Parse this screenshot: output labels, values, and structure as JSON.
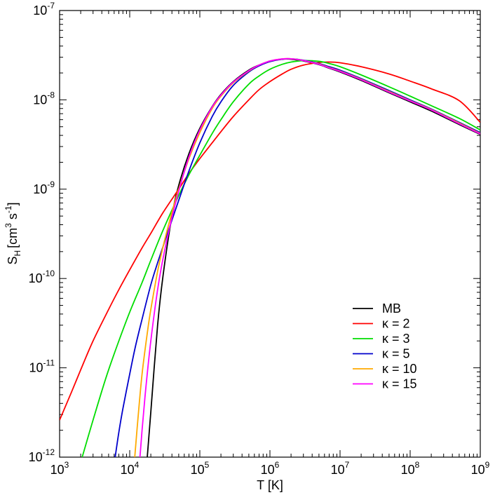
{
  "chart_data": {
    "type": "line",
    "xscale": "log",
    "yscale": "log",
    "xlim": [
      1000,
      1000000000
    ],
    "ylim": [
      1e-12,
      1e-07
    ],
    "grid": false,
    "legend_position": "lower-right",
    "xlabel": {
      "main": "T [K]"
    },
    "ylabel": {
      "base": "S",
      "sub": "H",
      "unit_open": "[cm",
      "sup1": "3",
      "mid": " s",
      "sup2": "-1",
      "unit_close": "]"
    },
    "x_ticks": [
      {
        "base": "10",
        "exp": "3",
        "value": 1000
      },
      {
        "base": "10",
        "exp": "4",
        "value": 10000
      },
      {
        "base": "10",
        "exp": "5",
        "value": 100000
      },
      {
        "base": "10",
        "exp": "6",
        "value": 1000000
      },
      {
        "base": "10",
        "exp": "7",
        "value": 10000000
      },
      {
        "base": "10",
        "exp": "8",
        "value": 100000000
      },
      {
        "base": "10",
        "exp": "9",
        "value": 1000000000
      }
    ],
    "y_ticks": [
      {
        "base": "10",
        "exp": "-12",
        "value": 1e-12
      },
      {
        "base": "10",
        "exp": "-11",
        "value": 1e-11
      },
      {
        "base": "10",
        "exp": "-10",
        "value": 1e-10
      },
      {
        "base": "10",
        "exp": "-9",
        "value": 1e-09
      },
      {
        "base": "10",
        "exp": "-8",
        "value": 1e-08
      },
      {
        "base": "10",
        "exp": "-7",
        "value": 1e-07
      }
    ],
    "series": [
      {
        "name": "MB",
        "color": "#000000",
        "x": [
          17800,
          20000,
          25000,
          30000,
          40000,
          50000,
          70000,
          100000,
          150000,
          200000,
          300000,
          500000,
          700000,
          1000000,
          1500000,
          2000000,
          3000000,
          5000000,
          7000000,
          10000000,
          20000000,
          50000000,
          100000000,
          200000000,
          500000000,
          1000000000
        ],
        "y": [
          1e-12,
          3.2e-12,
          3e-11,
          1.1e-10,
          5e-10,
          1.1e-09,
          2.5e-09,
          4.8e-09,
          8.4e-09,
          1.15e-08,
          1.6e-08,
          2.15e-08,
          2.45e-08,
          2.7e-08,
          2.85e-08,
          2.85e-08,
          2.72e-08,
          2.48e-08,
          2.26e-08,
          2.05e-08,
          1.65e-08,
          1.2e-08,
          9.5e-09,
          7.5e-09,
          5.3e-09,
          4.1e-09
        ]
      },
      {
        "name": "κ = 2",
        "color": "#ff0000",
        "x": [
          1000,
          1500,
          2000,
          3000,
          5000,
          7000,
          10000,
          15000,
          20000,
          30000,
          50000,
          70000,
          100000,
          150000,
          200000,
          300000,
          500000,
          700000,
          1000000,
          1500000,
          2000000,
          3000000,
          5000000,
          7000000,
          10000000,
          20000000,
          50000000,
          100000000,
          200000000,
          500000000,
          1000000000
        ],
        "y": [
          2.6e-12,
          5.5e-12,
          9.5e-12,
          2e-11,
          4.5e-11,
          7.5e-11,
          1.25e-10,
          2.2e-10,
          3.2e-10,
          5.5e-10,
          1e-09,
          1.5e-09,
          2.2e-09,
          3.3e-09,
          4.4e-09,
          6.5e-09,
          1e-08,
          1.3e-08,
          1.6e-08,
          1.95e-08,
          2.2e-08,
          2.45e-08,
          2.62e-08,
          2.65e-08,
          2.6e-08,
          2.35e-08,
          1.95e-08,
          1.62e-08,
          1.33e-08,
          9.8e-09,
          5.6e-09
        ]
      },
      {
        "name": "κ = 3",
        "color": "#00dd00",
        "x": [
          2100,
          2500,
          3000,
          4000,
          5000,
          7000,
          10000,
          15000,
          20000,
          30000,
          50000,
          70000,
          100000,
          150000,
          200000,
          300000,
          500000,
          700000,
          1000000,
          1500000,
          2000000,
          3000000,
          5000000,
          7000000,
          10000000,
          20000000,
          50000000,
          100000000,
          200000000,
          500000000,
          1000000000
        ],
        "y": [
          1e-12,
          1.6e-12,
          2.6e-12,
          5.5e-12,
          9.5e-12,
          2e-11,
          4.2e-11,
          9e-11,
          1.6e-10,
          3.5e-10,
          8.5e-10,
          1.45e-09,
          2.4e-09,
          4.2e-09,
          6e-09,
          9.5e-09,
          1.5e-08,
          1.85e-08,
          2.2e-08,
          2.5e-08,
          2.65e-08,
          2.75e-08,
          2.7e-08,
          2.55e-08,
          2.35e-08,
          1.9e-08,
          1.4e-08,
          1.1e-08,
          8.6e-09,
          6.2e-09,
          4.6e-09
        ]
      },
      {
        "name": "κ = 5",
        "color": "#0000cc",
        "x": [
          6200,
          7000,
          8000,
          10000,
          12000,
          15000,
          20000,
          25000,
          30000,
          40000,
          50000,
          70000,
          100000,
          150000,
          200000,
          300000,
          500000,
          700000,
          1000000,
          1500000,
          2000000,
          3000000,
          5000000,
          7000000,
          10000000,
          20000000,
          50000000,
          100000000,
          200000000,
          500000000,
          1000000000
        ],
        "y": [
          1e-12,
          1.9e-12,
          3.5e-12,
          8.5e-12,
          1.7e-11,
          3.5e-11,
          8.5e-11,
          1.5e-10,
          2.3e-10,
          4.5e-10,
          7.5e-10,
          1.6e-09,
          3.3e-09,
          6.5e-09,
          9.5e-09,
          1.45e-08,
          2.05e-08,
          2.4e-08,
          2.68e-08,
          2.85e-08,
          2.88e-08,
          2.78e-08,
          2.55e-08,
          2.35e-08,
          2.15e-08,
          1.73e-08,
          1.27e-08,
          1e-08,
          7.9e-09,
          5.6e-09,
          4.3e-09
        ]
      },
      {
        "name": "κ = 10",
        "color": "#ffaa00",
        "x": [
          11800,
          13000,
          15000,
          18000,
          20000,
          25000,
          30000,
          40000,
          50000,
          70000,
          100000,
          150000,
          200000,
          300000,
          500000,
          700000,
          1000000,
          1500000,
          2000000,
          3000000,
          5000000,
          7000000,
          10000000,
          20000000,
          50000000,
          100000000,
          200000000,
          500000000,
          1000000000
        ],
        "y": [
          1e-12,
          2.5e-12,
          8.5e-12,
          2.6e-11,
          4.5e-11,
          1.2e-10,
          2.3e-10,
          5.5e-10,
          1e-09,
          2.2e-09,
          4.3e-09,
          8e-09,
          1.1e-08,
          1.55e-08,
          2.1e-08,
          2.45e-08,
          2.72e-08,
          2.87e-08,
          2.88e-08,
          2.76e-08,
          2.52e-08,
          2.3e-08,
          2.1e-08,
          1.7e-08,
          1.24e-08,
          9.8e-09,
          7.8e-09,
          5.5e-09,
          4.2e-09
        ]
      },
      {
        "name": "κ = 15",
        "color": "#ff00ff",
        "x": [
          14000,
          15000,
          17000,
          20000,
          25000,
          30000,
          40000,
          50000,
          70000,
          100000,
          150000,
          200000,
          300000,
          500000,
          700000,
          1000000,
          1500000,
          2000000,
          3000000,
          5000000,
          7000000,
          10000000,
          20000000,
          50000000,
          100000000,
          200000000,
          500000000,
          1000000000
        ],
        "y": [
          1e-12,
          2e-12,
          6e-12,
          2e-11,
          7.5e-11,
          1.7e-10,
          4.8e-10,
          9.5e-10,
          2.3e-09,
          4.6e-09,
          8.3e-09,
          1.13e-08,
          1.58e-08,
          2.12e-08,
          2.45e-08,
          2.72e-08,
          2.87e-08,
          2.88e-08,
          2.75e-08,
          2.5e-08,
          2.28e-08,
          2.08e-08,
          1.68e-08,
          1.22e-08,
          9.7e-09,
          7.7e-09,
          5.4e-09,
          4.15e-09
        ]
      }
    ]
  }
}
